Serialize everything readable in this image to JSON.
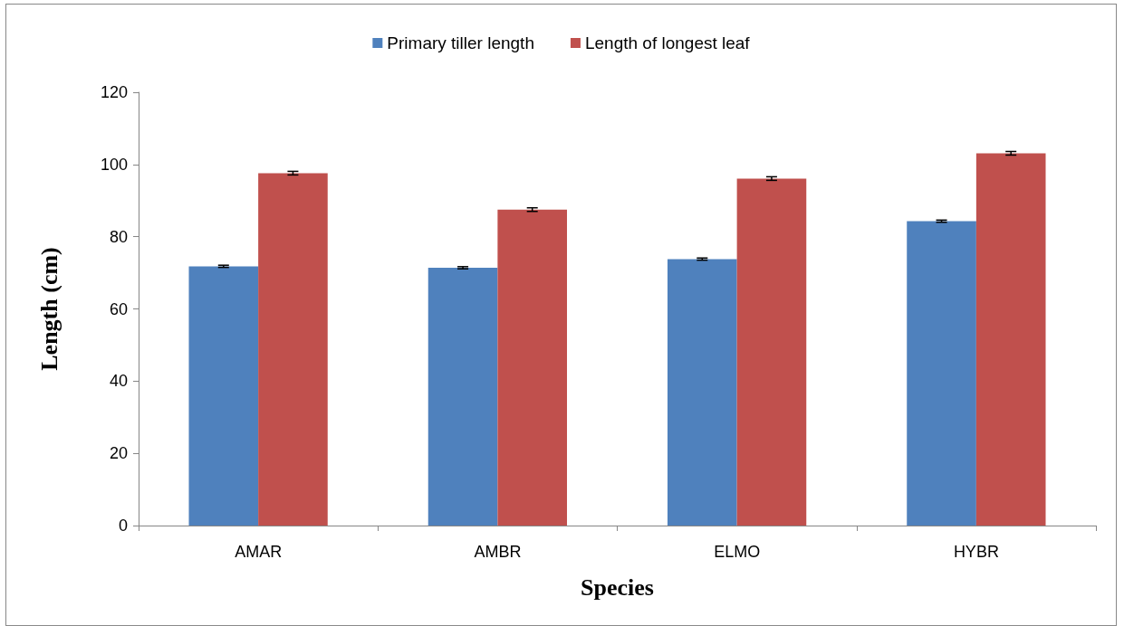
{
  "chart_data": {
    "type": "bar",
    "xlabel": "Species",
    "ylabel": "Length (cm)",
    "categories": [
      "AMAR",
      "AMBR",
      "ELMO",
      "HYBR"
    ],
    "series": [
      {
        "name": "Primary tiller length",
        "color": "#4f81bd",
        "values": [
          71.8,
          71.4,
          73.8,
          84.3
        ],
        "errors": [
          0.3,
          0.3,
          0.3,
          0.3
        ]
      },
      {
        "name": "Length of longest leaf",
        "color": "#c0504d",
        "values": [
          97.6,
          87.5,
          96.1,
          103.1
        ],
        "errors": [
          0.5,
          0.5,
          0.5,
          0.5
        ]
      }
    ],
    "ylim": [
      0,
      120
    ],
    "yticks": [
      0,
      20,
      40,
      60,
      80,
      100,
      120
    ],
    "grid": false,
    "legend": "top"
  }
}
